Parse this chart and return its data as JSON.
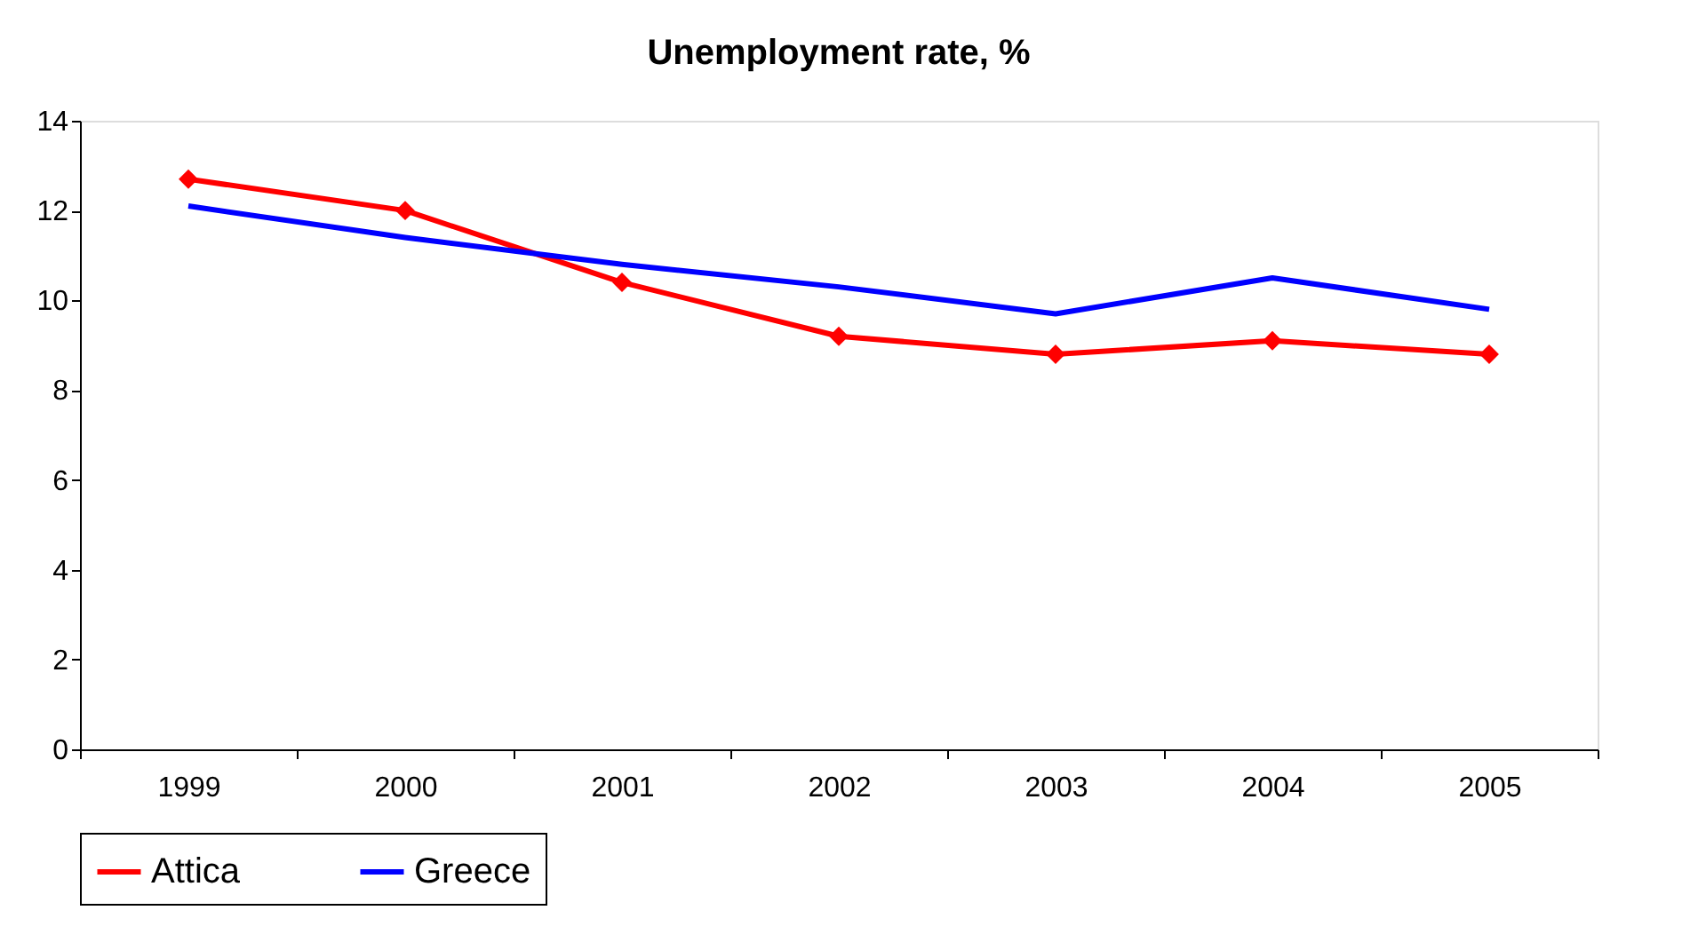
{
  "chart_data": {
    "type": "line",
    "title": "Unemployment rate, %",
    "categories": [
      "1999",
      "2000",
      "2001",
      "2002",
      "2003",
      "2004",
      "2005"
    ],
    "series": [
      {
        "name": "Attica",
        "color": "#ff0000",
        "marker": "diamond",
        "values": [
          12.7,
          12.0,
          10.4,
          9.2,
          8.8,
          9.1,
          8.8
        ]
      },
      {
        "name": "Greece",
        "color": "#0000ff",
        "marker": "none",
        "values": [
          12.1,
          11.4,
          10.8,
          10.3,
          9.7,
          10.5,
          9.8
        ]
      }
    ],
    "ylim": [
      0,
      14
    ],
    "yticks": [
      0,
      2,
      4,
      6,
      8,
      10,
      12,
      14
    ],
    "grid": false,
    "legend": "bottom"
  }
}
